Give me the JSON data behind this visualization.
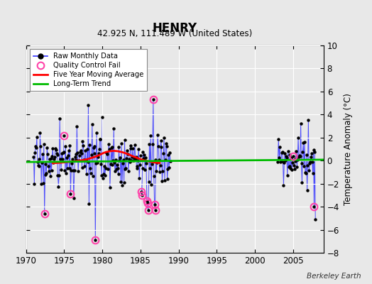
{
  "title": "HENRY",
  "subtitle": "42.925 N, 111.489 W (United States)",
  "ylabel": "Temperature Anomaly (°C)",
  "credit": "Berkeley Earth",
  "xlim": [
    1970,
    2009
  ],
  "ylim": [
    -8,
    10
  ],
  "yticks": [
    -8,
    -6,
    -4,
    -2,
    0,
    2,
    4,
    6,
    8,
    10
  ],
  "xticks": [
    1970,
    1975,
    1980,
    1985,
    1990,
    1995,
    2000,
    2005
  ],
  "outer_bg": "#e8e8e8",
  "plot_bg": "#e8e8e8",
  "grid_color": "#ffffff",
  "raw_line_color": "#3333ff",
  "raw_dot_color": "#000000",
  "qc_fail_color": "#ff44aa",
  "moving_avg_color": "#ff0000",
  "trend_color": "#00bb00",
  "seed1": 17,
  "seed2": 99
}
